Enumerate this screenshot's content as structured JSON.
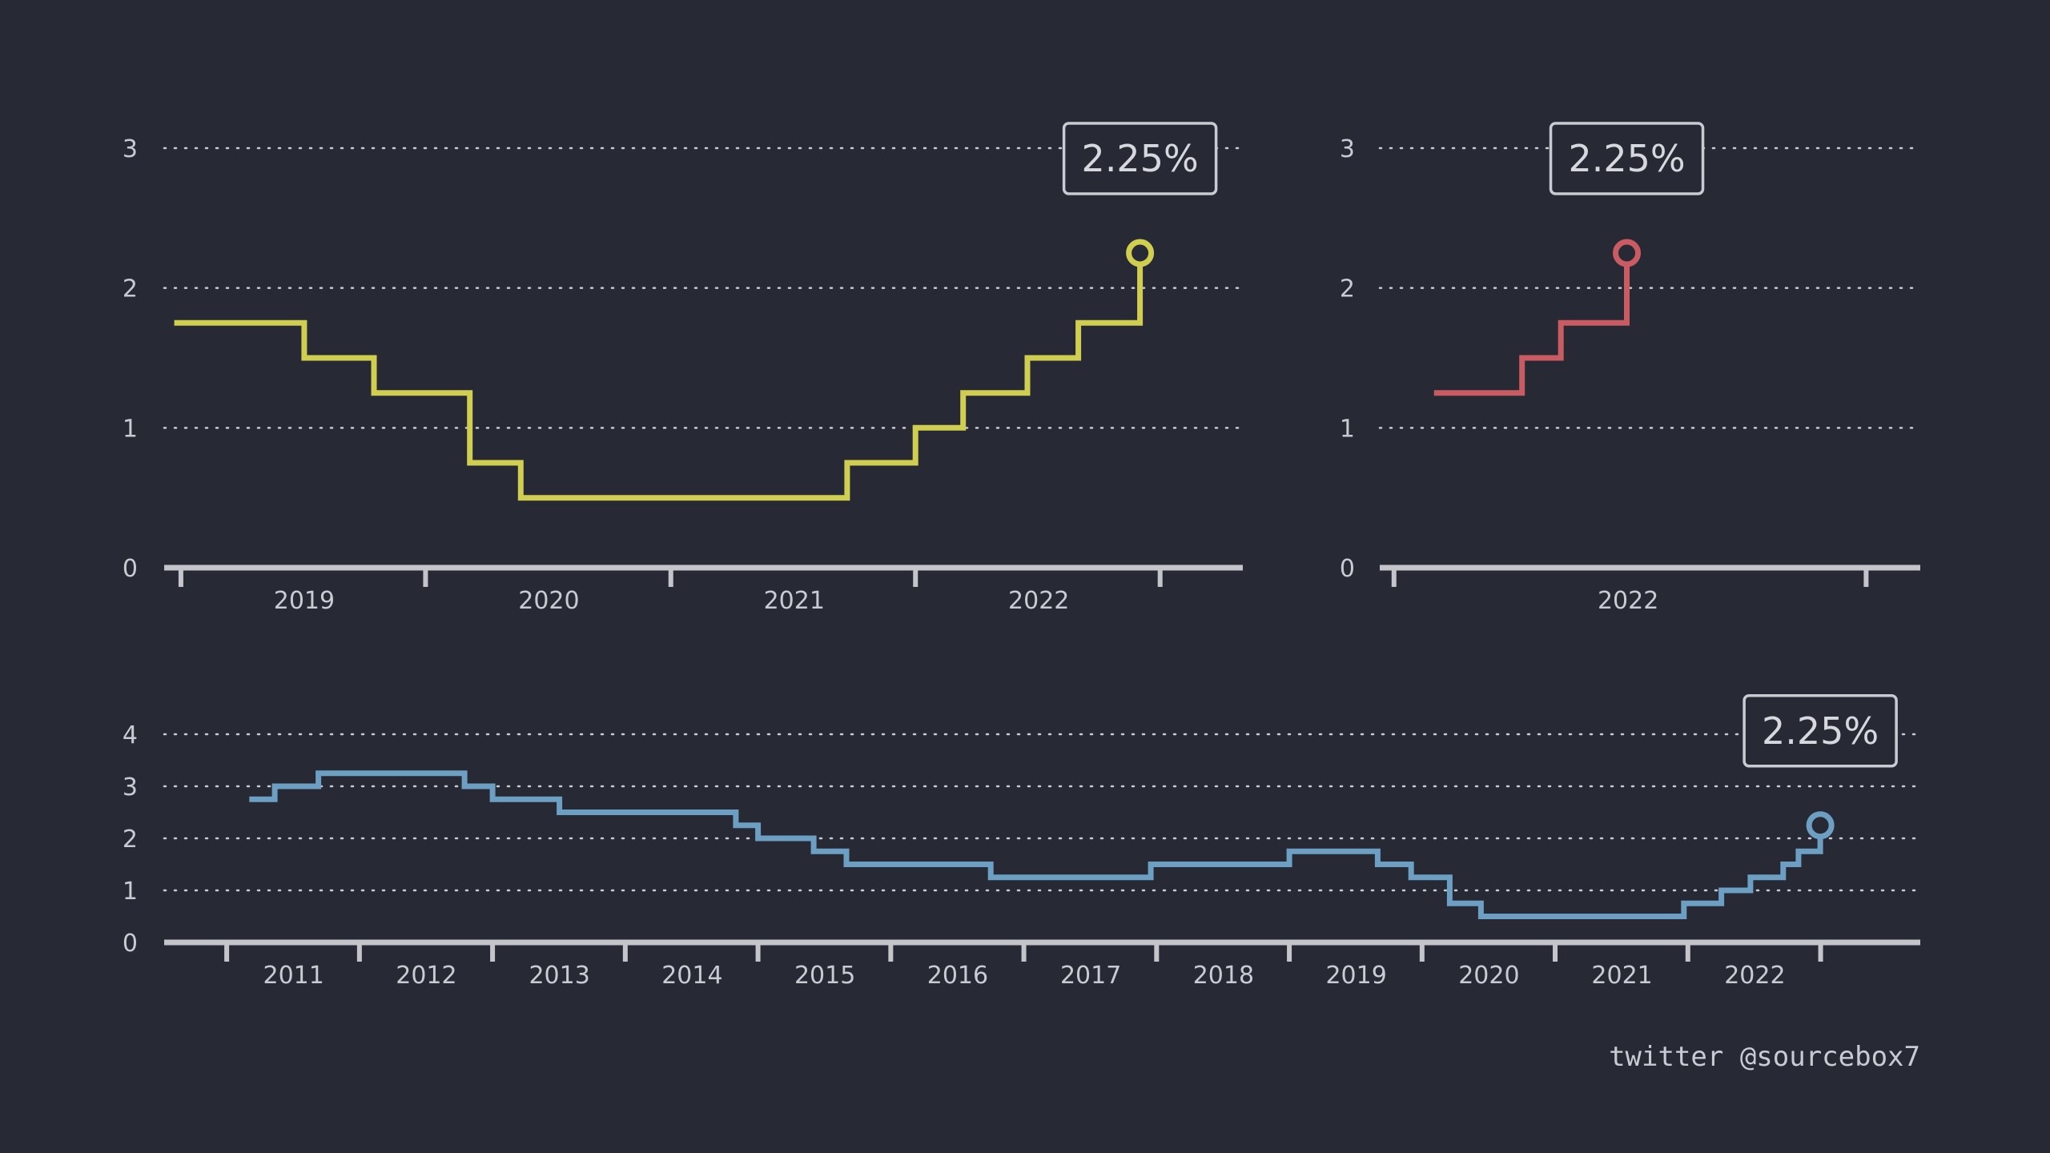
{
  "credit": "twitter @sourcebox7",
  "chart_data": [
    {
      "id": "recent",
      "type": "line",
      "step": true,
      "color": "#cfce50",
      "ylim": [
        0,
        3
      ],
      "yticks": [
        0,
        1,
        2,
        3
      ],
      "xlim": [
        "2018-06-06",
        "2022-10-30"
      ],
      "xtick_dates": [
        "2018-07-01",
        "2019-07-01",
        "2020-07-01",
        "2021-07-01",
        "2022-07-01"
      ],
      "xlabels": [
        {
          "label": "2019",
          "date": "2019-01-01"
        },
        {
          "label": "2020",
          "date": "2020-01-01"
        },
        {
          "label": "2021",
          "date": "2021-01-01"
        },
        {
          "label": "2022",
          "date": "2022-01-01"
        }
      ],
      "grid": true,
      "callout": "2.25%",
      "x": [
        "2018-06-21",
        "2019-01-01",
        "2019-04-15",
        "2019-09-05",
        "2019-11-20",
        "2021-03-21",
        "2021-07-01",
        "2021-09-10",
        "2021-12-15",
        "2022-03-01",
        "2022-06-01"
      ],
      "y": [
        1.75,
        1.5,
        1.25,
        0.75,
        0.5,
        0.75,
        1.0,
        1.25,
        1.5,
        1.75,
        2.25
      ]
    },
    {
      "id": "2022",
      "type": "line",
      "step": true,
      "color": "#c95c63",
      "ylim": [
        0,
        3
      ],
      "yticks": [
        0,
        1,
        2,
        3
      ],
      "xlim": [
        "2021-12-21",
        "2023-02-10"
      ],
      "xtick_dates": [
        "2022-01-01",
        "2023-01-01"
      ],
      "xlabels": [
        {
          "label": "2022",
          "date": "2022-07-01"
        }
      ],
      "grid": true,
      "callout": "2.25%",
      "x": [
        "2022-02-01",
        "2022-04-10",
        "2022-05-10",
        "2022-06-30"
      ],
      "y": [
        1.25,
        1.5,
        1.75,
        2.25
      ]
    },
    {
      "id": "long",
      "type": "line",
      "step": true,
      "color": "#6c9fc1",
      "ylim": [
        0,
        4
      ],
      "yticks": [
        0,
        1,
        2,
        3,
        4
      ],
      "xlim": [
        "2010-01-10",
        "2023-04-01"
      ],
      "xtick_dates": [
        "2010-07-01",
        "2011-07-01",
        "2012-07-01",
        "2013-07-01",
        "2014-07-01",
        "2015-07-01",
        "2016-07-01",
        "2017-07-01",
        "2018-07-01",
        "2019-07-01",
        "2020-07-01",
        "2021-07-01",
        "2022-07-01"
      ],
      "xlabels": [
        {
          "label": "2011",
          "date": "2011-01-01"
        },
        {
          "label": "2012",
          "date": "2012-01-01"
        },
        {
          "label": "2013",
          "date": "2013-01-01"
        },
        {
          "label": "2014",
          "date": "2014-01-01"
        },
        {
          "label": "2015",
          "date": "2015-01-01"
        },
        {
          "label": "2016",
          "date": "2016-01-01"
        },
        {
          "label": "2017",
          "date": "2017-01-01"
        },
        {
          "label": "2018",
          "date": "2018-01-01"
        },
        {
          "label": "2019",
          "date": "2019-01-01"
        },
        {
          "label": "2020",
          "date": "2020-01-01"
        },
        {
          "label": "2021",
          "date": "2021-01-01"
        },
        {
          "label": "2022",
          "date": "2022-01-01"
        }
      ],
      "grid": true,
      "callout": "2.25%",
      "x": [
        "2010-09-01",
        "2010-11-10",
        "2011-03-10",
        "2012-04-15",
        "2012-07-01",
        "2012-09-15",
        "2013-01-01",
        "2014-05-01",
        "2014-07-01",
        "2014-12-01",
        "2015-03-01",
        "2015-10-15",
        "2016-04-01",
        "2017-06-15",
        "2018-07-01",
        "2019-03-01",
        "2019-06-01",
        "2019-09-15",
        "2019-12-10",
        "2021-06-20",
        "2021-10-01",
        "2021-12-20",
        "2022-03-20",
        "2022-05-01",
        "2022-06-30"
      ],
      "y": [
        2.75,
        3.0,
        3.25,
        3.0,
        2.75,
        2.75,
        2.5,
        2.25,
        2.0,
        1.75,
        1.5,
        1.5,
        1.25,
        1.5,
        1.75,
        1.5,
        1.25,
        0.75,
        0.5,
        0.75,
        1.0,
        1.25,
        1.5,
        1.75,
        2.25
      ]
    }
  ]
}
